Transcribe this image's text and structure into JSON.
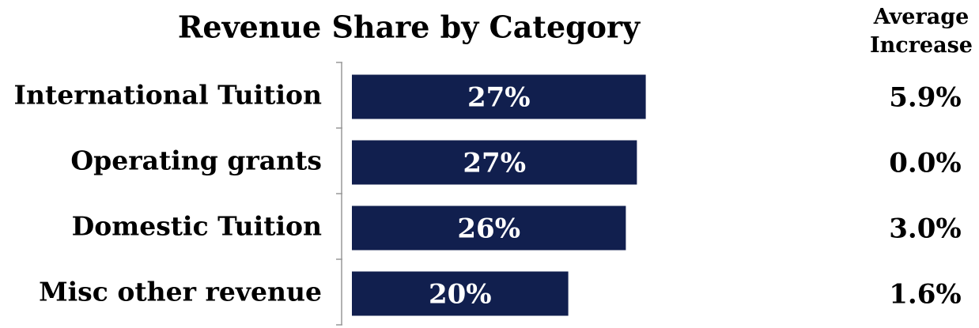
{
  "chart_data": {
    "type": "bar",
    "orientation": "horizontal",
    "title": "Revenue Share by Category",
    "categories": [
      "International Tuition",
      "Operating grants",
      "Domestic Tuition",
      "Misc other revenue"
    ],
    "values": [
      27.4,
      26.6,
      25.6,
      20.4
    ],
    "value_labels": [
      "27%",
      "27%",
      "26%",
      "20%"
    ],
    "color": "#111f4e",
    "xlim": [
      0,
      30
    ],
    "side_header": "Average Increase",
    "side_labels": [
      "5.9%",
      "0.0%",
      "3.0%",
      "1.6%"
    ]
  }
}
